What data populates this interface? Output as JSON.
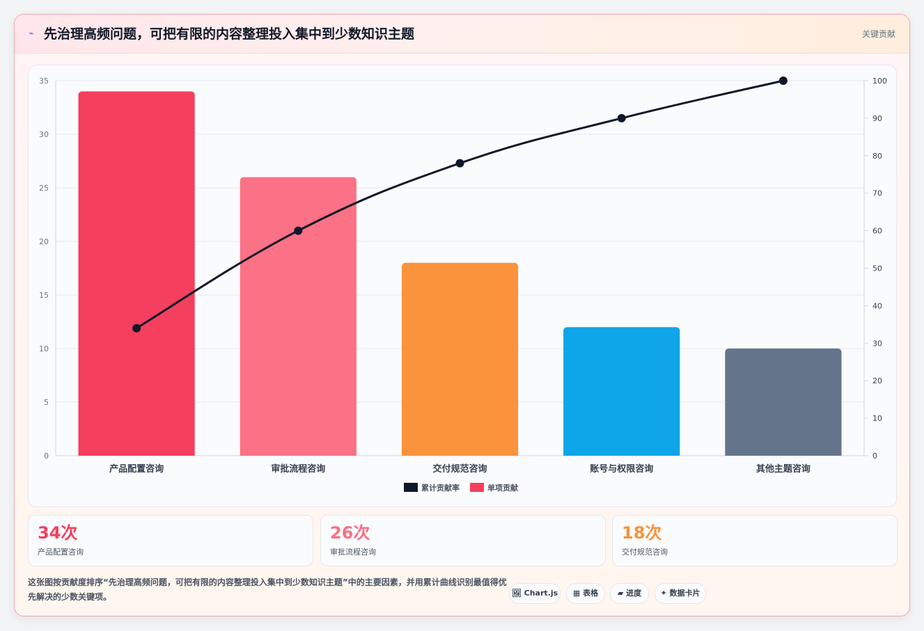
{
  "header": {
    "icon": "lightning-icon",
    "title": "先治理高频问题，可把有限的内容整理投入集中到少数知识主题",
    "tag": "关键贡献"
  },
  "chart_data": {
    "type": "bar",
    "categories": [
      "产品配置咨询",
      "审批流程咨询",
      "交付规范咨询",
      "账号与权限咨询",
      "其他主题咨询"
    ],
    "series": [
      {
        "name": "单项贡献",
        "type": "bar",
        "axis": "left",
        "values": [
          34,
          26,
          18,
          12,
          10
        ]
      },
      {
        "name": "累计贡献率",
        "type": "line",
        "axis": "right",
        "values": [
          34,
          60,
          78,
          90,
          100
        ]
      }
    ],
    "bar_colors": [
      "#f43f5e",
      "#fb7185",
      "#fb923c",
      "#0ea5e9",
      "#64748b"
    ],
    "line_color": "#0f172a",
    "ylim": [
      0,
      35
    ],
    "y2lim": [
      0,
      100
    ],
    "yticks": [
      0,
      5,
      10,
      15,
      20,
      25,
      30,
      35
    ],
    "y2ticks": [
      0,
      10,
      20,
      30,
      40,
      50,
      60,
      70,
      80,
      90,
      100
    ],
    "legend": [
      "累计贡献率",
      "单项贡献"
    ],
    "legend_placement": "bottom",
    "grid": true
  },
  "stats": [
    {
      "value": "34次",
      "label": "产品配置咨询",
      "color": "#f43f5e"
    },
    {
      "value": "26次",
      "label": "审批流程咨询",
      "color": "#fb7185"
    },
    {
      "value": "18次",
      "label": "交付规范咨询",
      "color": "#fb923c"
    }
  ],
  "description": "这张图按贡献度排序“先治理高频问题，可把有限的内容整理投入集中到少数知识主题”中的主要因素，并用累计曲线识别最值得优先解决的少数关键项。",
  "chips": [
    {
      "icon": "image-icon",
      "label": "🖼 Chart.js"
    },
    {
      "icon": "table-icon",
      "label": "▦ 表格"
    },
    {
      "icon": "progress-icon",
      "label": "▰ 进度"
    },
    {
      "icon": "sparkle-icon",
      "label": "✦ 数据卡片"
    }
  ]
}
